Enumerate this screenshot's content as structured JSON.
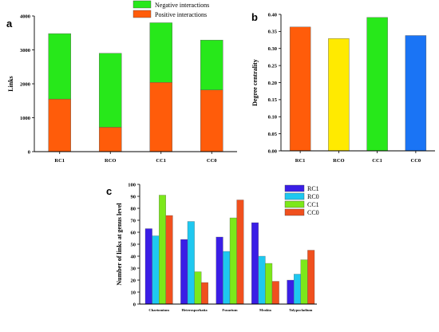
{
  "panels": {
    "a": "a",
    "b": "b",
    "c": "c"
  },
  "chart_data": [
    {
      "id": "a",
      "type": "bar",
      "stacked": true,
      "categories": [
        "RC1",
        "RCO",
        "CC1",
        "CC0"
      ],
      "series": [
        {
          "name": "Positive interactions",
          "color": "#ff5c0a",
          "values": [
            1550,
            720,
            2040,
            1820
          ]
        },
        {
          "name": "Negative interactions",
          "color": "#27e81a",
          "values": [
            1930,
            2180,
            1760,
            1470
          ]
        }
      ],
      "ylabel": "Links",
      "ylim": [
        0,
        4000
      ],
      "yticks": [
        0,
        1000,
        2000,
        3000,
        4000
      ],
      "legend": "top-center"
    },
    {
      "id": "b",
      "type": "bar",
      "categories": [
        "RC1",
        "RCO",
        "CC1",
        "CC0"
      ],
      "values": [
        0.363,
        0.329,
        0.391,
        0.338
      ],
      "colors": [
        "#ff5c0a",
        "#ffea00",
        "#27e81a",
        "#1a74f5"
      ],
      "ylabel": "Degree centrality",
      "ylim": [
        0,
        0.4
      ],
      "yticks": [
        "0.00",
        "0.05",
        "0.10",
        "0.15",
        "0.20",
        "0.25",
        "0.30",
        "0.35",
        "0.40"
      ]
    },
    {
      "id": "c",
      "type": "bar",
      "categories": [
        "Chaetomium",
        "Heterosporbatia",
        "Fusarium",
        "Mrakia",
        "Tolypocladium"
      ],
      "series": [
        {
          "name": "RC1",
          "color": "#3a1ee6",
          "values": [
            63,
            54,
            56,
            68,
            20
          ]
        },
        {
          "name": "RC0",
          "color": "#1ec8f0",
          "values": [
            57,
            69,
            44,
            40,
            25
          ]
        },
        {
          "name": "CC1",
          "color": "#7ce81a",
          "values": [
            91,
            27,
            72,
            34,
            37
          ]
        },
        {
          "name": "CC0",
          "color": "#f0501e",
          "values": [
            74,
            18,
            87,
            19,
            45
          ]
        }
      ],
      "ylabel": "Number of links at genus level",
      "ylim": [
        0,
        100
      ],
      "yticks": [
        0,
        10,
        20,
        30,
        40,
        50,
        60,
        70,
        80,
        90,
        100
      ],
      "legend": "top-right"
    }
  ]
}
